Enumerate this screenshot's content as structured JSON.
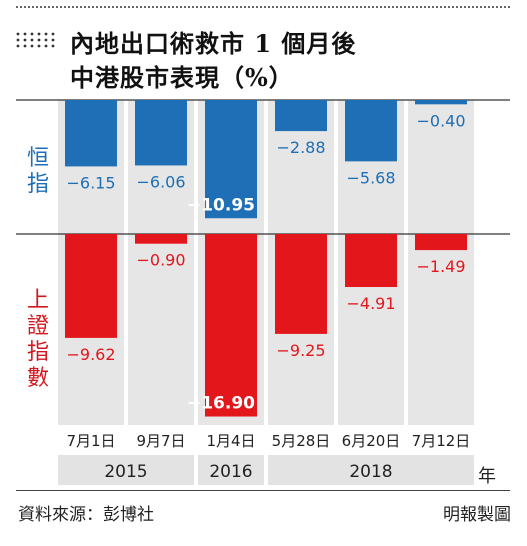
{
  "title_line1": "內地出口術救市 1 個月後",
  "title_line2": "中港股市表現（%）",
  "series_labels": {
    "hsi": "恒\n指",
    "shanghai": "上\n證\n指\n數"
  },
  "source": "資料來源：彭博社",
  "credit": "明報製圖",
  "year_suffix": "年",
  "colors": {
    "hsi": "#1e6fb5",
    "shanghai": "#e3161c",
    "column_bg": "#e6e6e6",
    "year_bg": "#e3e3e3"
  },
  "chart_data": {
    "type": "bar",
    "categories": [
      "7月1日",
      "9月7日",
      "1月4日",
      "5月28日",
      "6月20日",
      "7月12日"
    ],
    "year_groups": [
      {
        "label": "2015",
        "span": 2
      },
      {
        "label": "2016",
        "span": 1
      },
      {
        "label": "2018",
        "span": 3
      }
    ],
    "series": [
      {
        "name": "恒指",
        "values": [
          -6.15,
          -6.06,
          -10.95,
          -2.88,
          -5.68,
          -0.4
        ],
        "labels": [
          "−6.15",
          "−6.06",
          "−10.95",
          "−2.88",
          "−5.68",
          "−0.40"
        ]
      },
      {
        "name": "上證指數",
        "values": [
          -9.62,
          -0.9,
          -16.9,
          -9.25,
          -4.91,
          -1.49
        ],
        "labels": [
          "−9.62",
          "−0.90",
          "−16.90",
          "−9.25",
          "−4.91",
          "−1.49"
        ]
      }
    ],
    "ylabel": "%"
  }
}
